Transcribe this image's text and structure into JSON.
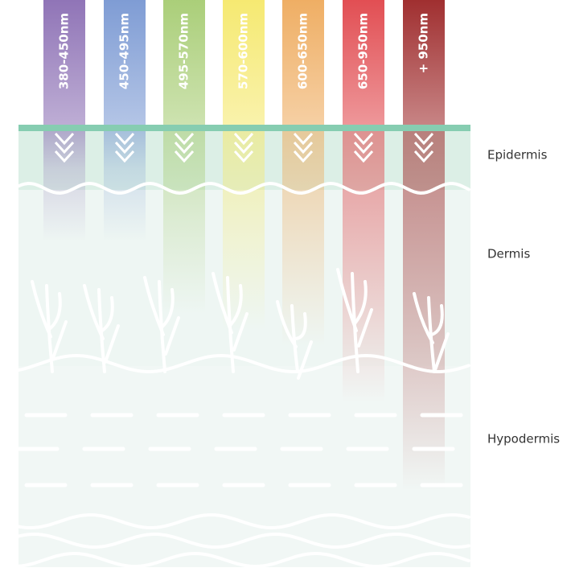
{
  "bands": [
    {
      "label": "380-450nm",
      "color": "#8a6db3"
    },
    {
      "label": "450-495nm",
      "color": "#7897d2"
    },
    {
      "label": "495-570nm",
      "color": "#a6cc72"
    },
    {
      "label": "570-600nm",
      "color": "#f5e86a"
    },
    {
      "label": "600-650nm",
      "color": "#eeaa5c"
    },
    {
      "label": "650-950nm",
      "color": "#e0454a"
    },
    {
      "label": "+ 950nm",
      "color": "#9b2425"
    }
  ],
  "layers": [
    {
      "label": "Epidermis"
    },
    {
      "label": "Dermis"
    },
    {
      "label": "Hypodermis"
    }
  ]
}
